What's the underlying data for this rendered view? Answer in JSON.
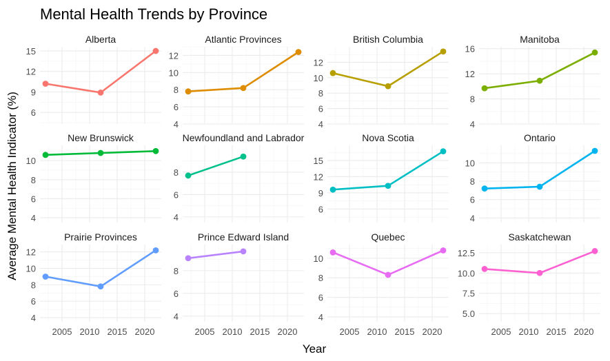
{
  "chart_data": {
    "type": "line",
    "title": "Mental Health Trends by Province",
    "xlabel": "Year",
    "ylabel": "Average Mental Health Indicator (%)",
    "x_ticks": [
      2005,
      2010,
      2015,
      2020
    ],
    "xlim": [
      2001,
      2023
    ],
    "grid": true,
    "legend": "none",
    "panels": [
      {
        "name": "Alberta",
        "color": "#F8766D",
        "ylim": [
          4.3,
          15.6
        ],
        "y_ticks": [
          "6",
          "9",
          "12",
          "15"
        ],
        "y_tick_values": [
          6,
          9,
          12,
          15
        ],
        "x": [
          2002,
          2012,
          2022
        ],
        "values": [
          10.2,
          8.9,
          15.0
        ]
      },
      {
        "name": "Atlantic Provinces",
        "color": "#DE8C00",
        "ylim": [
          4.0,
          13.0
        ],
        "y_ticks": [
          "4",
          "6",
          "8",
          "10",
          "12"
        ],
        "y_tick_values": [
          4,
          6,
          8,
          10,
          12
        ],
        "x": [
          2002,
          2012,
          2022
        ],
        "values": [
          7.8,
          8.2,
          12.4
        ]
      },
      {
        "name": "British Columbia",
        "color": "#B79F00",
        "ylim": [
          4.0,
          14.0
        ],
        "y_ticks": [
          "4",
          "6",
          "8",
          "10",
          "12"
        ],
        "y_tick_values": [
          4,
          6,
          8,
          10,
          12
        ],
        "x": [
          2002,
          2012,
          2022
        ],
        "values": [
          10.6,
          8.9,
          13.4
        ]
      },
      {
        "name": "Manitoba",
        "color": "#7CAE00",
        "ylim": [
          4.0,
          16.3
        ],
        "y_ticks": [
          "4",
          "8",
          "12",
          "16"
        ],
        "y_tick_values": [
          4,
          8,
          12,
          16
        ],
        "x": [
          2002,
          2012,
          2022
        ],
        "values": [
          9.7,
          10.9,
          15.4
        ]
      },
      {
        "name": "New Brunswick",
        "color": "#00BA38",
        "ylim": [
          3.5,
          11.6
        ],
        "y_ticks": [
          "4",
          "6",
          "8",
          "10"
        ],
        "y_tick_values": [
          4,
          6,
          8,
          10
        ],
        "x": [
          2002,
          2012,
          2022
        ],
        "values": [
          10.6,
          10.8,
          11.0
        ]
      },
      {
        "name": "Newfoundland and Labrador",
        "color": "#00C08B",
        "ylim": [
          3.5,
          10.4
        ],
        "y_ticks": [
          "4",
          "6",
          "8"
        ],
        "y_tick_values": [
          4,
          6,
          8
        ],
        "x": [
          2002,
          2012
        ],
        "values": [
          7.7,
          9.4
        ]
      },
      {
        "name": "Nova Scotia",
        "color": "#00BFC4",
        "ylim": [
          3.5,
          17.8
        ],
        "y_ticks": [
          "6",
          "9",
          "12",
          "15"
        ],
        "y_tick_values": [
          6,
          9,
          12,
          15
        ],
        "x": [
          2002,
          2012,
          2022
        ],
        "values": [
          9.6,
          10.3,
          16.7
        ]
      },
      {
        "name": "Ontario",
        "color": "#00B4F0",
        "ylim": [
          3.5,
          11.9
        ],
        "y_ticks": [
          "4",
          "6",
          "8",
          "10"
        ],
        "y_tick_values": [
          4,
          6,
          8,
          10
        ],
        "x": [
          2002,
          2012,
          2022
        ],
        "values": [
          7.2,
          7.4,
          11.3
        ]
      },
      {
        "name": "Prairie Provinces",
        "color": "#619CFF",
        "ylim": [
          3.5,
          12.9
        ],
        "y_ticks": [
          "4",
          "6",
          "8",
          "10",
          "12"
        ],
        "y_tick_values": [
          4,
          6,
          8,
          10,
          12
        ],
        "x": [
          2002,
          2012,
          2022
        ],
        "values": [
          9.0,
          7.8,
          12.2
        ]
      },
      {
        "name": "Prince Edward Island",
        "color": "#B983FF",
        "ylim": [
          3.5,
          10.3
        ],
        "y_ticks": [
          "4",
          "6",
          "8"
        ],
        "y_tick_values": [
          4,
          6,
          8
        ],
        "x": [
          2002,
          2012
        ],
        "values": [
          9.1,
          9.7
        ]
      },
      {
        "name": "Quebec",
        "color": "#E76BF3",
        "ylim": [
          3.5,
          11.4
        ],
        "y_ticks": [
          "4",
          "6",
          "8",
          "10"
        ],
        "y_tick_values": [
          4,
          6,
          8,
          10
        ],
        "x": [
          2002,
          2012,
          2022
        ],
        "values": [
          10.6,
          8.3,
          10.8
        ]
      },
      {
        "name": "Saskatchewan",
        "color": "#FD61D1",
        "ylim": [
          4.0,
          13.5
        ],
        "y_ticks": [
          "5.0",
          "7.5",
          "10.0",
          "12.5"
        ],
        "y_tick_values": [
          5.0,
          7.5,
          10.0,
          12.5
        ],
        "x": [
          2002,
          2012,
          2022
        ],
        "values": [
          10.5,
          10.0,
          12.7
        ]
      }
    ]
  }
}
